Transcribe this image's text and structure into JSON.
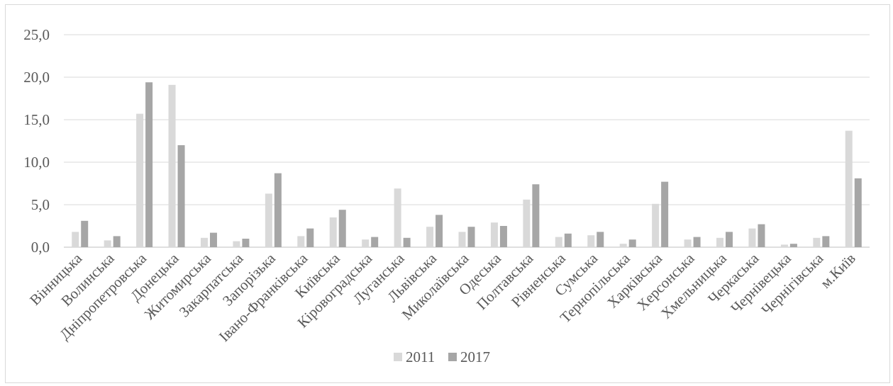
{
  "chart_data": {
    "type": "bar",
    "categories": [
      "Вінницька",
      "Волинська",
      "Дніпропетровська",
      "Донецька",
      "Житомирська",
      "Закарпатська",
      "Запорізька",
      "Івано-Франківська",
      "Київська",
      "Кіровоградська",
      "Луганська",
      "Львівська",
      "Миколаївська",
      "Одеська",
      "Полтавська",
      "Рівненська",
      "Сумська",
      "Тернопільська",
      "Харківська",
      "Херсонська",
      "Хмельницька",
      "Черкаська",
      "Чернівецька",
      "Чернігівська",
      "м.Київ"
    ],
    "series": [
      {
        "name": "2011",
        "color": "#d9d9d9",
        "values": [
          1.8,
          0.8,
          15.7,
          19.1,
          1.1,
          0.7,
          6.3,
          1.3,
          3.5,
          0.9,
          6.9,
          2.4,
          1.8,
          2.9,
          5.6,
          1.2,
          1.4,
          0.4,
          5.1,
          0.9,
          1.1,
          2.2,
          0.3,
          1.1,
          13.7
        ]
      },
      {
        "name": "2017",
        "color": "#a6a6a6",
        "values": [
          3.1,
          1.3,
          19.4,
          12.0,
          1.7,
          1.0,
          8.7,
          2.2,
          4.4,
          1.2,
          1.1,
          3.8,
          2.4,
          2.5,
          7.4,
          1.6,
          1.8,
          0.9,
          7.7,
          1.2,
          1.8,
          2.7,
          0.4,
          1.3,
          8.1
        ]
      }
    ],
    "ylim": [
      0,
      25
    ],
    "yticks": [
      "0,0",
      "5,0",
      "10,0",
      "15,0",
      "20,0",
      "25,0"
    ],
    "ytick_values": [
      0,
      5,
      10,
      15,
      20,
      25
    ],
    "grid": true,
    "legend_position": "bottom",
    "title": "",
    "xlabel": "",
    "ylabel": ""
  }
}
